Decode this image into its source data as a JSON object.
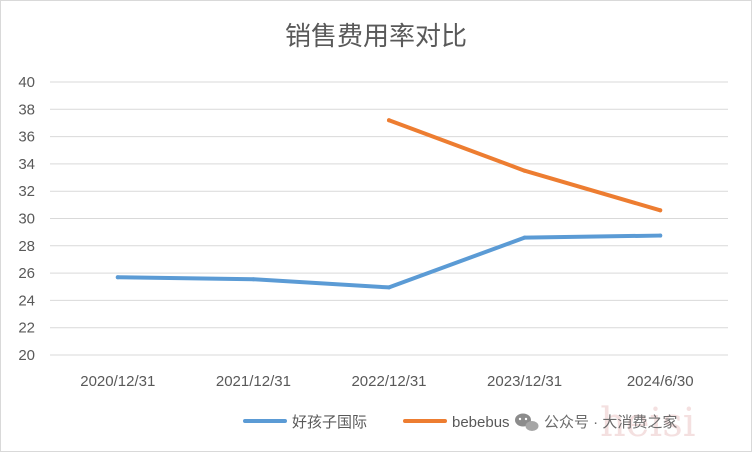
{
  "chart_data": {
    "type": "line",
    "title": "销售费用率对比",
    "categories": [
      "2020/12/31",
      "2021/12/31",
      "2022/12/31",
      "2023/12/31",
      "2024/6/30"
    ],
    "ylim": [
      20,
      40
    ],
    "yticks": [
      20,
      22,
      24,
      26,
      28,
      30,
      32,
      34,
      36,
      38,
      40
    ],
    "grid": true,
    "legend_position": "bottom",
    "series": [
      {
        "name": "好孩子国际",
        "color": "#5b9bd5",
        "values": [
          25.7,
          25.55,
          24.95,
          28.6,
          28.75
        ]
      },
      {
        "name": "bebebus",
        "color": "#ed7d31",
        "values": [
          null,
          null,
          37.2,
          33.5,
          30.6
        ]
      }
    ]
  },
  "watermark": {
    "text": "公众号 · 大消费之家",
    "faint_text": "heisi",
    "icon": "wechat-icon"
  }
}
